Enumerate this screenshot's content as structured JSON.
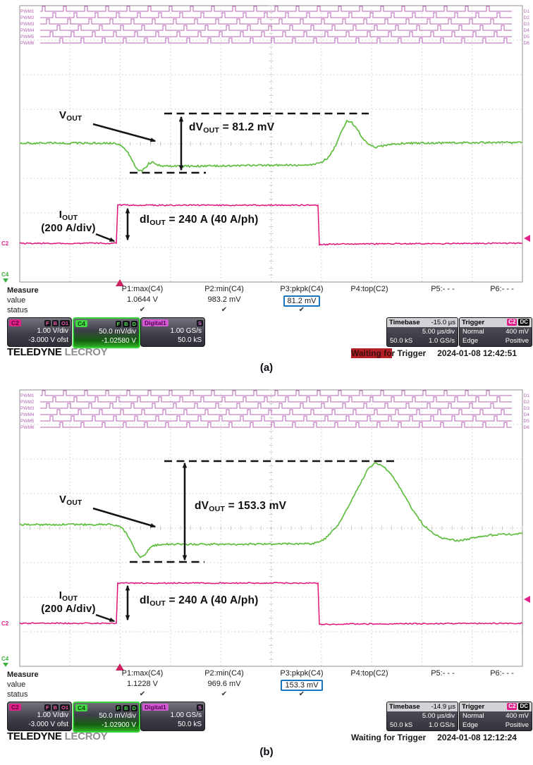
{
  "colors": {
    "pwm": "#b465b4",
    "vout_trace": "#5fbe3f",
    "iout_trace": "#e01379",
    "value_box": "#1c74ba",
    "flag_red": "#b42025",
    "c2_chip": "#e0218a",
    "c4_chip": "#43d843"
  },
  "panels": [
    {
      "caption": "(a)",
      "pwm_labels": [
        "PWM1",
        "PWM2",
        "PWM3",
        "PWM4",
        "PWM5",
        "PWM6"
      ],
      "d_labels": [
        "D1",
        "D2",
        "D3",
        "D4",
        "D5",
        "D6"
      ],
      "annotations": {
        "vout": {
          "main": "V",
          "sub": "OUT"
        },
        "dv": {
          "main": "dV",
          "sub": "OUT",
          "rest": " = 81.2 mV"
        },
        "iout": {
          "main": "I",
          "sub": "OUT",
          "scale": "(200 A/div)"
        },
        "di": {
          "main": "dI",
          "sub": "OUT",
          "rest": " = 240 A (40 A/ph)"
        },
        "c2_marker": "C2",
        "c4_marker": "C4"
      },
      "measure": {
        "row_label": "Measure",
        "value_label": "value",
        "status_label": "status",
        "columns": [
          {
            "name": "P1:max(C4)",
            "value": "1.0644 V",
            "status": "✔"
          },
          {
            "name": "P2:min(C4)",
            "value": "983.2 mV",
            "status": "✔"
          },
          {
            "name": "P3:pkpk(C4)",
            "value": "81.2 mV",
            "status": "✔"
          },
          {
            "name": "P4:top(C2)",
            "value": "",
            "status": ""
          },
          {
            "name": "P5:- - -",
            "value": "",
            "status": ""
          },
          {
            "name": "P6:- - -",
            "value": "",
            "status": ""
          }
        ]
      },
      "channels": {
        "c2": {
          "label": "C2",
          "badges": [
            "F",
            "B",
            "O1"
          ],
          "line1": "1.00 V/div",
          "line2": "-3.000 V ofst"
        },
        "c4": {
          "label": "C4",
          "badges": [
            "F",
            "B",
            "D"
          ],
          "line1": "50.0 mV/div",
          "line2": "-1.02580 V"
        },
        "digital": {
          "label": "Digital1",
          "badge": "S",
          "line1": "1.00 GS/s",
          "line2": "50.0 kS"
        }
      },
      "timebase": {
        "title": "Timebase",
        "offset": "-15.0 µs",
        "scale": "5.00 µs/div",
        "samples": "50.0 kS",
        "rate": "1.0 GS/s"
      },
      "trigger": {
        "title": "Trigger",
        "source": "C2",
        "coupling": "DC",
        "mode": "Normal",
        "level": "400 mV",
        "type": "Edge",
        "slope": "Positive"
      },
      "logo": {
        "part1": "TELEDYNE",
        "part2": "LECROY"
      },
      "status": {
        "highlight_part": "Waiting fo",
        "rest_part": "r Trigger",
        "timestamp": "2024-01-08 12:42:51"
      }
    },
    {
      "caption": "(b)",
      "pwm_labels": [
        "PWM1",
        "PWM2",
        "PWM3",
        "PWM4",
        "PWM5",
        "PWM6"
      ],
      "d_labels": [
        "D1",
        "D2",
        "D3",
        "D4",
        "D5",
        "D6"
      ],
      "annotations": {
        "vout": {
          "main": "V",
          "sub": "OUT"
        },
        "dv": {
          "main": "dV",
          "sub": "OUT",
          "rest": " = 153.3 mV"
        },
        "iout": {
          "main": "I",
          "sub": "OUT",
          "scale": "(200 A/div)"
        },
        "di": {
          "main": "dI",
          "sub": "OUT",
          "rest": " = 240 A (40 A/ph)"
        },
        "c2_marker": "C2",
        "c4_marker": "C4"
      },
      "measure": {
        "row_label": "Measure",
        "value_label": "value",
        "status_label": "status",
        "columns": [
          {
            "name": "P1:max(C4)",
            "value": "1.1228 V",
            "status": "✔"
          },
          {
            "name": "P2:min(C4)",
            "value": "969.6 mV",
            "status": "✔"
          },
          {
            "name": "P3:pkpk(C4)",
            "value": "153.3 mV",
            "status": "✔"
          },
          {
            "name": "P4:top(C2)",
            "value": "",
            "status": ""
          },
          {
            "name": "P5:- - -",
            "value": "",
            "status": ""
          },
          {
            "name": "P6:- - -",
            "value": "",
            "status": ""
          }
        ]
      },
      "channels": {
        "c2": {
          "label": "C2",
          "badges": [
            "F",
            "B",
            "O1"
          ],
          "line1": "1.00 V/div",
          "line2": "-3.000 V ofst"
        },
        "c4": {
          "label": "C4",
          "badges": [
            "F",
            "B",
            "D"
          ],
          "line1": "50.0 mV/div",
          "line2": "-1.02900 V"
        },
        "digital": {
          "label": "Digital1",
          "badge": "S",
          "line1": "1.00 GS/s",
          "line2": "50.0 kS"
        }
      },
      "timebase": {
        "title": "Timebase",
        "offset": "-14.9 µs",
        "scale": "5.00 µs/div",
        "samples": "50.0 kS",
        "rate": "1.0 GS/s"
      },
      "trigger": {
        "title": "Trigger",
        "source": "C2",
        "coupling": "DC",
        "mode": "Normal",
        "level": "400 mV",
        "type": "Edge",
        "slope": "Positive"
      },
      "logo": {
        "part1": "TELEDYNE",
        "part2": "LECROY"
      },
      "status": {
        "highlight_part": "",
        "rest_part": "Waiting for Trigger",
        "timestamp": "2024-01-08 12:12:24"
      }
    }
  ]
}
